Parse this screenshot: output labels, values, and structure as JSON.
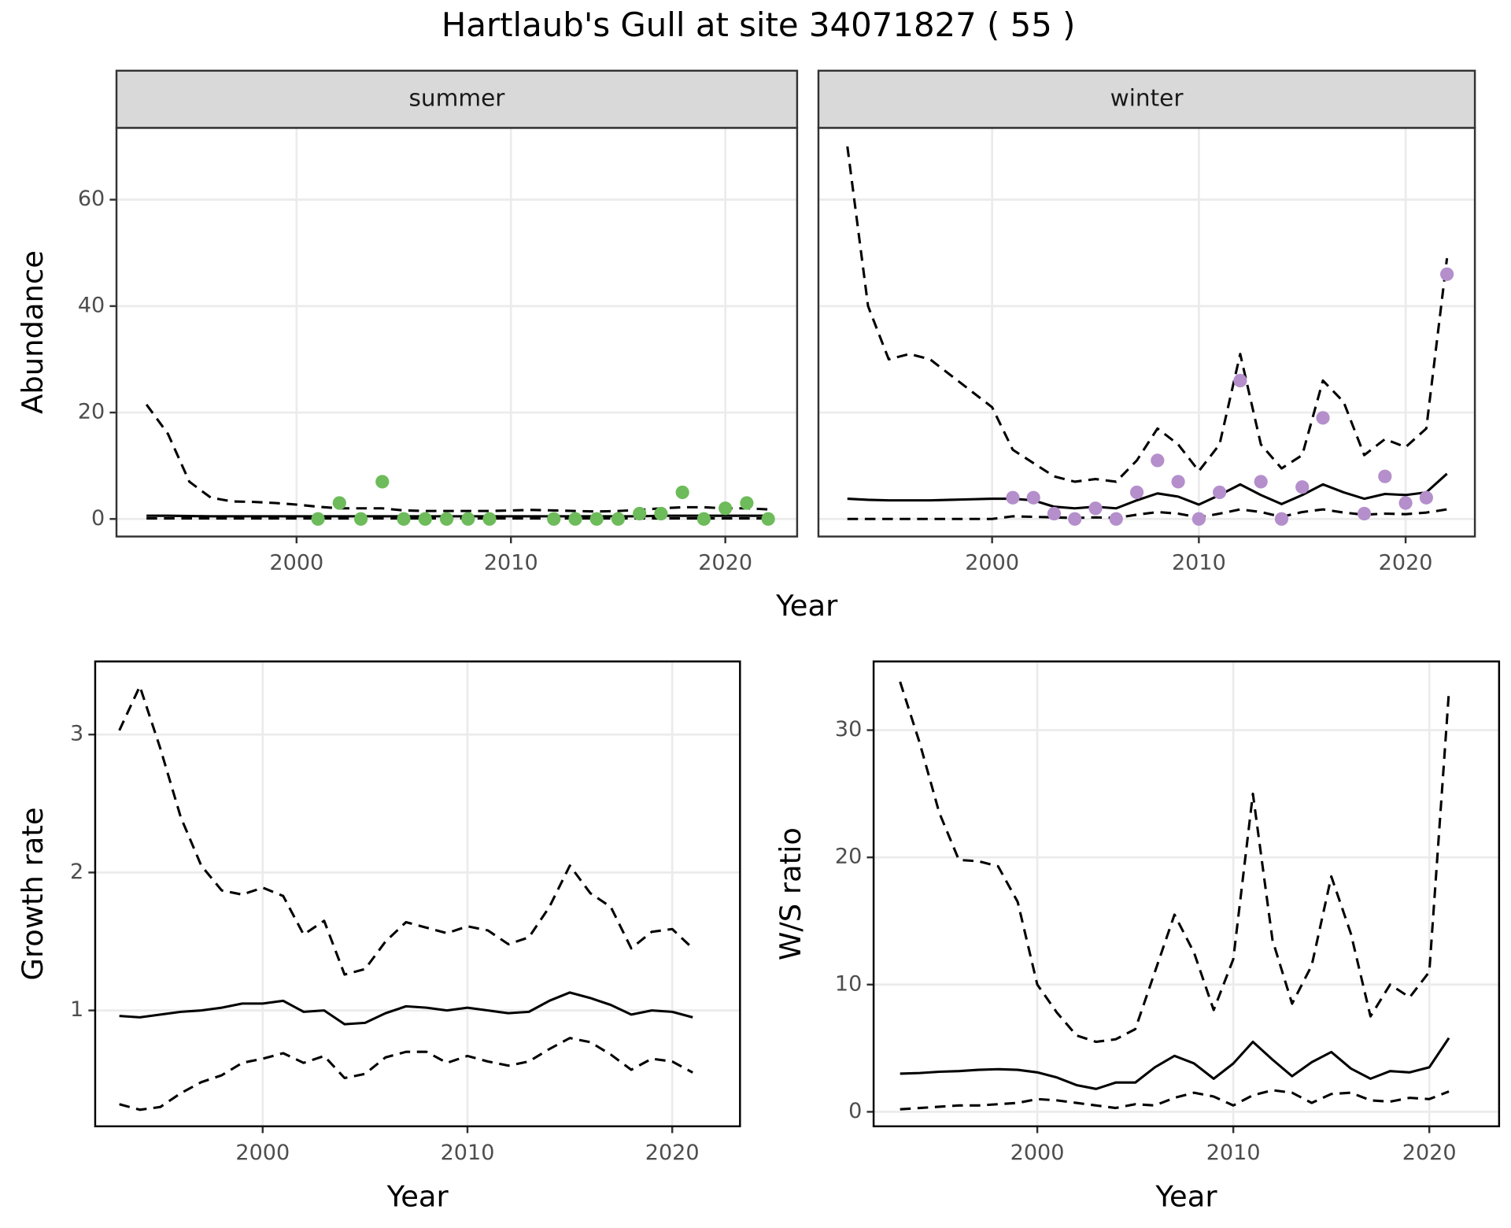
{
  "title": "Hartlaub's Gull at site 34071827 ( 55 )",
  "chart_data": [
    {
      "type": "line",
      "facet": "summer",
      "xlabel": "Year",
      "ylabel": "Abundance",
      "xlim": [
        1991.6,
        2023.35
      ],
      "ylim": [
        -3.3,
        73.5
      ],
      "xticks": [
        2000,
        2010,
        2020
      ],
      "yticks": [
        0,
        20,
        40,
        60
      ],
      "grid": true,
      "x": [
        1993,
        1994,
        1995,
        1996,
        1997,
        1998,
        1999,
        2000,
        2001,
        2002,
        2003,
        2004,
        2005,
        2006,
        2007,
        2008,
        2009,
        2010,
        2011,
        2012,
        2013,
        2014,
        2015,
        2016,
        2017,
        2018,
        2019,
        2020,
        2021,
        2022
      ],
      "series": [
        {
          "style": "dashed",
          "color": "#000000",
          "values": [
            21.5,
            16,
            7,
            4,
            3.3,
            3.2,
            3,
            2.7,
            2.3,
            2,
            2,
            2,
            1.6,
            1.5,
            1.5,
            1.5,
            1.5,
            1.6,
            1.7,
            1.6,
            1.5,
            1.4,
            1.5,
            1.7,
            2,
            2.2,
            2.2,
            2,
            2,
            1.8
          ]
        },
        {
          "style": "solid",
          "color": "#000000",
          "values": [
            0.6,
            0.6,
            0.55,
            0.5,
            0.5,
            0.5,
            0.5,
            0.5,
            0.5,
            0.5,
            0.5,
            0.5,
            0.5,
            0.5,
            0.5,
            0.5,
            0.5,
            0.5,
            0.5,
            0.5,
            0.5,
            0.5,
            0.5,
            0.5,
            0.6,
            0.6,
            0.6,
            0.6,
            0.6,
            0.6
          ]
        },
        {
          "style": "dashed",
          "color": "#000000",
          "values": [
            0.1,
            0.1,
            0.1,
            0.1,
            0.1,
            0.1,
            0.1,
            0.1,
            0.1,
            0.1,
            0.1,
            0.1,
            0.1,
            0.1,
            0.1,
            0.1,
            0.1,
            0.1,
            0.1,
            0.1,
            0.1,
            0.1,
            0.1,
            0.1,
            0.1,
            0.1,
            0.1,
            0.1,
            0.1,
            0.1
          ]
        }
      ],
      "points": {
        "color": "#6dbb5a",
        "x": [
          2001,
          2002,
          2003,
          2004,
          2005,
          2006,
          2007,
          2008,
          2009,
          2012,
          2013,
          2014,
          2015,
          2016,
          2017,
          2018,
          2019,
          2020,
          2021,
          2022
        ],
        "values": [
          0,
          3,
          0,
          7,
          0,
          0,
          0,
          0,
          0,
          0,
          0,
          0,
          0,
          1,
          1,
          5,
          0,
          2,
          3,
          0
        ]
      }
    },
    {
      "type": "line",
      "facet": "winter",
      "xlim": [
        1991.6,
        2023.35
      ],
      "ylim": [
        -3.3,
        73.5
      ],
      "xticks": [
        2000,
        2010,
        2020
      ],
      "grid": true,
      "x": [
        1993,
        1994,
        1995,
        1996,
        1997,
        1998,
        1999,
        2000,
        2001,
        2002,
        2003,
        2004,
        2005,
        2006,
        2007,
        2008,
        2009,
        2010,
        2011,
        2012,
        2013,
        2014,
        2015,
        2016,
        2017,
        2018,
        2019,
        2020,
        2021,
        2022
      ],
      "series": [
        {
          "style": "dashed",
          "color": "#000000",
          "values": [
            70,
            40,
            30,
            31,
            30,
            27,
            24,
            21,
            13,
            10.5,
            8,
            7,
            7.5,
            7,
            11,
            17,
            14,
            9,
            14,
            31,
            14,
            9.5,
            12,
            26,
            22,
            12,
            15,
            13.5,
            17,
            49
          ]
        },
        {
          "style": "solid",
          "color": "#000000",
          "values": [
            3.8,
            3.6,
            3.5,
            3.5,
            3.5,
            3.6,
            3.7,
            3.8,
            3.8,
            3.5,
            2.3,
            2,
            2.3,
            2,
            3.5,
            4.8,
            4.2,
            2.7,
            4.5,
            6.5,
            4.5,
            2.8,
            4.5,
            6.5,
            5,
            3.8,
            4.7,
            4.5,
            5,
            8.5
          ]
        },
        {
          "style": "dashed",
          "color": "#000000",
          "values": [
            0,
            0,
            0,
            0,
            0,
            0,
            0,
            0,
            0.5,
            0.4,
            0.3,
            0.2,
            0.3,
            0.2,
            0.8,
            1.3,
            1,
            0.3,
            1,
            1.8,
            1.3,
            0.4,
            1.3,
            1.8,
            1.2,
            0.8,
            1,
            0.9,
            1.2,
            1.8
          ]
        }
      ],
      "points": {
        "color": "#b48fcb",
        "x": [
          2001,
          2002,
          2003,
          2004,
          2005,
          2006,
          2007,
          2008,
          2009,
          2010,
          2011,
          2012,
          2013,
          2014,
          2015,
          2016,
          2018,
          2019,
          2020,
          2021,
          2022
        ],
        "values": [
          4,
          4,
          1,
          0,
          2,
          0,
          5,
          11,
          7,
          0,
          5,
          26,
          7,
          0,
          6,
          19,
          1,
          8,
          3,
          4,
          46
        ]
      }
    },
    {
      "type": "line",
      "xlabel": "Year",
      "ylabel": "Growth rate",
      "xlim": [
        1991.82,
        2023.31
      ],
      "ylim": [
        0.16,
        3.53
      ],
      "xticks": [
        2000,
        2010,
        2020
      ],
      "yticks": [
        1,
        2,
        3
      ],
      "grid": true,
      "x": [
        1993,
        1994,
        1995,
        1996,
        1997,
        1998,
        1999,
        2000,
        2001,
        2002,
        2003,
        2004,
        2005,
        2006,
        2007,
        2008,
        2009,
        2010,
        2011,
        2012,
        2013,
        2014,
        2015,
        2016,
        2017,
        2018,
        2019,
        2020,
        2021
      ],
      "series": [
        {
          "style": "dashed",
          "color": "#000000",
          "values": [
            3.03,
            3.35,
            2.9,
            2.4,
            2.05,
            1.87,
            1.84,
            1.89,
            1.83,
            1.55,
            1.65,
            1.26,
            1.3,
            1.5,
            1.64,
            1.6,
            1.56,
            1.61,
            1.58,
            1.48,
            1.53,
            1.75,
            2.05,
            1.85,
            1.75,
            1.45,
            1.57,
            1.59,
            1.45
          ]
        },
        {
          "style": "solid",
          "color": "#000000",
          "values": [
            0.96,
            0.95,
            0.97,
            0.99,
            1.0,
            1.02,
            1.05,
            1.05,
            1.07,
            0.99,
            1.0,
            0.9,
            0.91,
            0.98,
            1.03,
            1.02,
            1.0,
            1.02,
            1.0,
            0.98,
            0.99,
            1.07,
            1.13,
            1.09,
            1.04,
            0.97,
            1.0,
            0.99,
            0.95
          ]
        },
        {
          "style": "dashed",
          "color": "#000000",
          "values": [
            0.32,
            0.28,
            0.3,
            0.4,
            0.48,
            0.53,
            0.62,
            0.65,
            0.69,
            0.62,
            0.67,
            0.51,
            0.54,
            0.66,
            0.7,
            0.7,
            0.62,
            0.67,
            0.63,
            0.6,
            0.63,
            0.72,
            0.8,
            0.77,
            0.68,
            0.57,
            0.65,
            0.63,
            0.55
          ]
        }
      ]
    },
    {
      "type": "line",
      "xlabel": "Year",
      "ylabel": "W/S ratio",
      "xlim": [
        1991.65,
        2023.56
      ],
      "ylim": [
        -1.14,
        35.4
      ],
      "xticks": [
        2000,
        2010,
        2020
      ],
      "yticks": [
        0,
        10,
        20,
        30
      ],
      "grid": true,
      "x": [
        1993,
        1994,
        1995,
        1996,
        1997,
        1998,
        1999,
        2000,
        2001,
        2002,
        2003,
        2004,
        2005,
        2006,
        2007,
        2008,
        2009,
        2010,
        2011,
        2012,
        2013,
        2014,
        2015,
        2016,
        2017,
        2018,
        2019,
        2020,
        2021
      ],
      "series": [
        {
          "style": "dashed",
          "color": "#000000",
          "values": [
            33.8,
            29,
            23.5,
            19.8,
            19.7,
            19.3,
            16.5,
            10,
            7.8,
            6,
            5.5,
            5.7,
            6.5,
            11,
            15.5,
            12.5,
            8,
            12,
            25,
            13.5,
            8.5,
            11.5,
            18.5,
            14,
            7.5,
            10,
            9,
            11,
            33
          ]
        },
        {
          "style": "solid",
          "color": "#000000",
          "values": [
            3,
            3.05,
            3.15,
            3.2,
            3.3,
            3.35,
            3.3,
            3.1,
            2.7,
            2.1,
            1.8,
            2.3,
            2.3,
            3.5,
            4.4,
            3.8,
            2.6,
            3.8,
            5.5,
            4.1,
            2.8,
            3.9,
            4.7,
            3.4,
            2.6,
            3.2,
            3.1,
            3.5,
            5.8
          ]
        },
        {
          "style": "dashed",
          "color": "#000000",
          "values": [
            0.2,
            0.3,
            0.4,
            0.5,
            0.5,
            0.6,
            0.7,
            1.0,
            0.9,
            0.7,
            0.5,
            0.3,
            0.6,
            0.5,
            1.1,
            1.5,
            1.2,
            0.5,
            1.3,
            1.7,
            1.5,
            0.7,
            1.4,
            1.5,
            0.9,
            0.8,
            1.1,
            1.0,
            1.6
          ]
        }
      ]
    }
  ]
}
